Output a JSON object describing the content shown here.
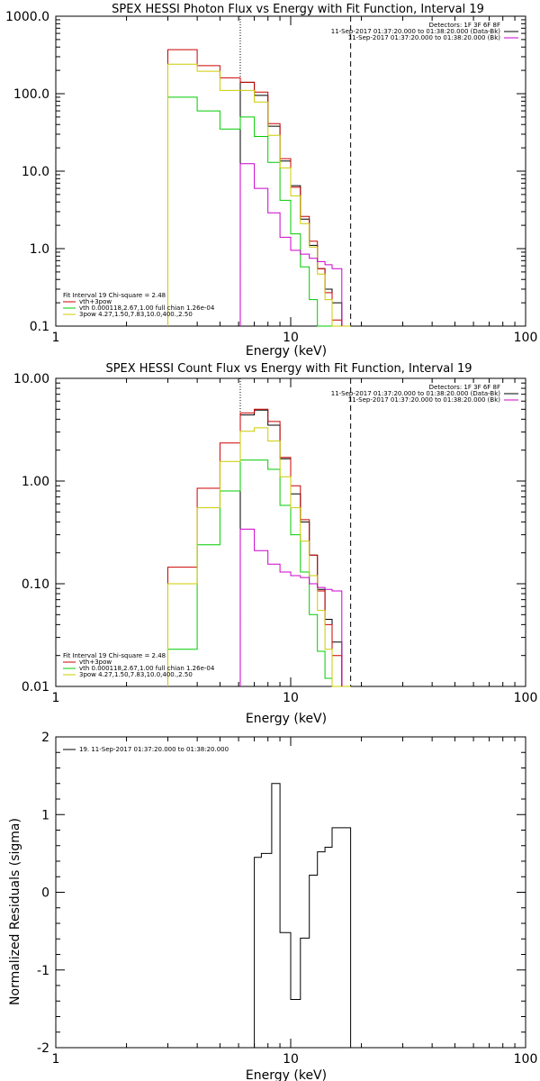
{
  "chart_data": [
    {
      "type": "line",
      "title": "SPEX HESSI Photon Flux vs Energy with Fit Function, Interval 19",
      "xlabel": "Energy (keV)",
      "ylabel": "",
      "xscale": "log",
      "yscale": "log",
      "xlim": [
        1,
        100
      ],
      "ylim": [
        0.1,
        1000
      ],
      "xticks": [
        1,
        10,
        100
      ],
      "xticklabels": [
        "1",
        "10",
        "100"
      ],
      "yticks": [
        0.1,
        1,
        10,
        100,
        1000
      ],
      "yticklabels": [
        "0.1",
        "1.0",
        "10.0",
        "100.0",
        "1000.0"
      ],
      "vlines": [
        {
          "x": 6.1,
          "style": "dotted"
        },
        {
          "x": 18,
          "style": "dashed"
        }
      ],
      "legend_top_right": [
        {
          "text": "Detectors: 1F 3F 6F 8F",
          "color": "#000000"
        },
        {
          "text": "11-Sep-2017 01:37:20.000 to 01:38:20.000 (Data-Bk)",
          "color": "#000000"
        },
        {
          "text": "11-Sep-2017 01:37:20.000 to 01:38:20.000 (Bk)",
          "color": "#cc00cc"
        }
      ],
      "legend_bottom_left": [
        {
          "text": "Fit Interval 19   Chi-square = 2.48",
          "color": "#000000"
        },
        {
          "text": "vth+3pow",
          "color": "#cc0000"
        },
        {
          "text": "vth 0.000118,2.67,1.00   full chian 1.26e-04",
          "color": "#00cc00"
        },
        {
          "text": "3pow 4.27,1.50,7.83,10.0,400.,2.50",
          "color": "#cccc00"
        }
      ],
      "x_edges": [
        3.0,
        4.0,
        5.0,
        6.1,
        7.0,
        8.0,
        9.0,
        10.0,
        11.0,
        12.0,
        13.0,
        14.0,
        15.0,
        16.5,
        18.0
      ],
      "series": [
        {
          "name": "Data-Bk",
          "color": "#000000",
          "start_bin": 3,
          "values": [
            140,
            95,
            38,
            13.5,
            6.5,
            2.4,
            1.1,
            0.55,
            0.3,
            0.2
          ]
        },
        {
          "name": "vth+3pow",
          "color": "#cc0000",
          "start_bin": 0,
          "values": [
            370,
            230,
            160,
            140,
            105,
            41,
            14.5,
            6.2,
            2.6,
            1.25,
            0.55,
            0.27,
            0.12,
            0.07
          ]
        },
        {
          "name": "vth",
          "color": "#00cc00",
          "start_bin": 0,
          "values": [
            90,
            60,
            35,
            50,
            28,
            13,
            4.2,
            1.55,
            0.58,
            0.22,
            0.1,
            0.04,
            0.012,
            0.004
          ]
        },
        {
          "name": "3pow",
          "color": "#cccc00",
          "start_bin": 0,
          "values": [
            240,
            195,
            110,
            110,
            78,
            29,
            11,
            4.8,
            2.1,
            1.05,
            0.47,
            0.22,
            0.1,
            0.04
          ]
        },
        {
          "name": "Bk",
          "color": "#cc00cc",
          "start_bin": 3,
          "values": [
            12.5,
            6.0,
            2.9,
            1.4,
            0.95,
            0.85,
            0.75,
            0.68,
            0.62,
            0.55
          ]
        }
      ]
    },
    {
      "type": "line",
      "title": "SPEX HESSI Count Flux vs Energy with Fit Function, Interval 19",
      "xlabel": "Energy (keV)",
      "ylabel": "",
      "xscale": "log",
      "yscale": "log",
      "xlim": [
        1,
        100
      ],
      "ylim": [
        0.01,
        10
      ],
      "xticks": [
        1,
        10,
        100
      ],
      "xticklabels": [
        "1",
        "10",
        "100"
      ],
      "yticks": [
        0.01,
        0.1,
        1,
        10
      ],
      "yticklabels": [
        "0.01",
        "0.10",
        "1.00",
        "10.00"
      ],
      "vlines": [
        {
          "x": 6.1,
          "style": "dotted"
        },
        {
          "x": 18,
          "style": "dashed"
        }
      ],
      "legend_top_right": [
        {
          "text": "Detectors: 1F 3F 6F 8F",
          "color": "#000000"
        },
        {
          "text": "11-Sep-2017 01:37:20.000 to 01:38:20.000 (Data-Bk)",
          "color": "#000000"
        },
        {
          "text": "11-Sep-2017 01:37:20.000 to 01:38:20.000 (Bk)",
          "color": "#cc00cc"
        }
      ],
      "legend_bottom_left": [
        {
          "text": "Fit Interval 19   Chi-square = 2.48",
          "color": "#000000"
        },
        {
          "text": "vth+3pow",
          "color": "#cc0000"
        },
        {
          "text": "vth 0.000118,2.67,1.00   full chian 1.26e-04",
          "color": "#00cc00"
        },
        {
          "text": "3pow 4.27,1.50,7.83,10.0,400.,2.50",
          "color": "#cccc00"
        }
      ],
      "x_edges": [
        3.0,
        4.0,
        5.0,
        6.1,
        7.0,
        8.0,
        9.0,
        10.0,
        11.0,
        12.0,
        13.0,
        14.0,
        15.0,
        16.5,
        18.0
      ],
      "series": [
        {
          "name": "Data-Bk",
          "color": "#000000",
          "start_bin": 3,
          "values": [
            4.4,
            4.9,
            3.5,
            1.65,
            0.75,
            0.4,
            0.19,
            0.088,
            0.045,
            0.027
          ]
        },
        {
          "name": "vth+3pow",
          "color": "#cc0000",
          "start_bin": 0,
          "values": [
            0.145,
            0.85,
            2.35,
            4.6,
            5.0,
            3.8,
            1.7,
            0.9,
            0.42,
            0.19,
            0.085,
            0.04,
            0.02,
            0.01
          ]
        },
        {
          "name": "vth",
          "color": "#00cc00",
          "start_bin": 0,
          "values": [
            0.023,
            0.24,
            0.8,
            1.6,
            1.6,
            1.3,
            0.58,
            0.3,
            0.13,
            0.05,
            0.022,
            0.012,
            0.006,
            0.003
          ]
        },
        {
          "name": "3pow",
          "color": "#cccc00",
          "start_bin": 0,
          "values": [
            0.1,
            0.55,
            1.55,
            3.05,
            3.3,
            2.45,
            1.1,
            0.55,
            0.26,
            0.12,
            0.055,
            0.023,
            0.01,
            0.006
          ]
        },
        {
          "name": "Bk",
          "color": "#cc00cc",
          "start_bin": 3,
          "values": [
            0.34,
            0.21,
            0.155,
            0.13,
            0.12,
            0.115,
            0.1,
            0.092,
            0.088,
            0.085
          ]
        }
      ]
    },
    {
      "type": "line",
      "title": "",
      "xlabel": "Energy (keV)",
      "ylabel": "Normalized Residuals (sigma)",
      "xscale": "log",
      "yscale": "linear",
      "xlim": [
        1,
        100
      ],
      "ylim": [
        -2,
        2
      ],
      "xticks": [
        1,
        10,
        100
      ],
      "xticklabels": [
        "1",
        "10",
        "100"
      ],
      "yticks": [
        -2,
        -1,
        0,
        1,
        2
      ],
      "yticklabels": [
        "-2",
        "-1",
        "0",
        "1",
        "2"
      ],
      "legend_top_left": [
        {
          "text": "19. 11-Sep-2017 01:37:20.000 to 01:38:20.000",
          "color": "#000000"
        }
      ],
      "x_edges": [
        6.1,
        7.0,
        7.5,
        8.3,
        9.0,
        10.0,
        11.0,
        12.0,
        13.0,
        14.0,
        15.0,
        16.5,
        18.0
      ],
      "series": [
        {
          "name": "",
          "color": "#000000",
          "start_bin": 0,
          "values": [
            -2,
            0.45,
            0.5,
            1.4,
            -0.52,
            -1.38,
            -0.59,
            0.22,
            0.52,
            0.58,
            0.83,
            0.83
          ]
        }
      ]
    }
  ]
}
